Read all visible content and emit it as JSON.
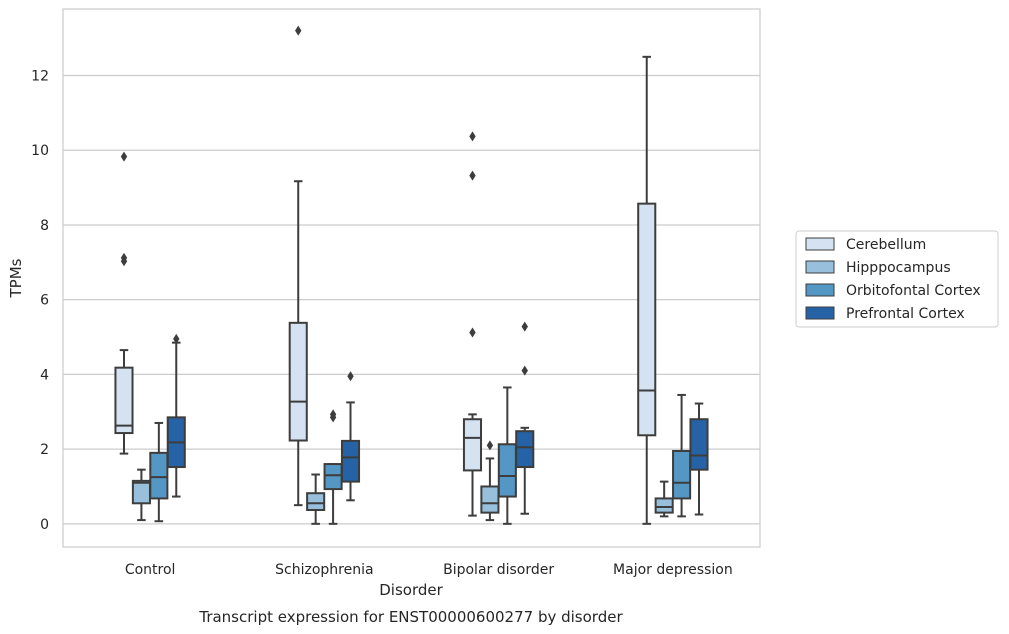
{
  "chart_data": {
    "type": "box",
    "title": "",
    "caption": "Transcript expression for ENST00000600277 by disorder",
    "xlabel": "Disorder",
    "ylabel": "TPMs",
    "ylim": [
      -0.62,
      13.78
    ],
    "yticks": [
      0,
      2,
      4,
      6,
      8,
      10,
      12
    ],
    "grid": "horizontal",
    "legend_position": "right",
    "categories": [
      "Control",
      "Schizophrenia",
      "Bipolar disorder",
      "Major depression"
    ],
    "series": [
      {
        "name": "Cerebellum",
        "color": "#d4e2f1",
        "boxes": [
          {
            "whislo": 1.88,
            "q1": 2.43,
            "med": 2.63,
            "q3": 4.18,
            "whishi": 4.65,
            "fliers": [
              9.83,
              7.12,
              7.03
            ]
          },
          {
            "whislo": 0.5,
            "q1": 2.23,
            "med": 3.27,
            "q3": 5.38,
            "whishi": 9.17,
            "fliers": [
              13.2
            ]
          },
          {
            "whislo": 0.22,
            "q1": 1.43,
            "med": 2.3,
            "q3": 2.8,
            "whishi": 2.93,
            "fliers": [
              10.37,
              9.32,
              5.12
            ]
          },
          {
            "whislo": 0.0,
            "q1": 2.37,
            "med": 3.57,
            "q3": 8.57,
            "whishi": 12.5,
            "fliers": []
          }
        ]
      },
      {
        "name": "Hipppocampus",
        "color": "#98c0dc",
        "boxes": [
          {
            "whislo": 0.1,
            "q1": 0.55,
            "med": 1.1,
            "q3": 1.15,
            "whishi": 1.45,
            "fliers": []
          },
          {
            "whislo": 0.0,
            "q1": 0.37,
            "med": 0.55,
            "q3": 0.82,
            "whishi": 1.32,
            "fliers": []
          },
          {
            "whislo": 0.1,
            "q1": 0.3,
            "med": 0.55,
            "q3": 1.0,
            "whishi": 1.75,
            "fliers": [
              2.1
            ]
          },
          {
            "whislo": 0.2,
            "q1": 0.3,
            "med": 0.45,
            "q3": 0.68,
            "whishi": 1.13,
            "fliers": []
          }
        ]
      },
      {
        "name": "Orbitofontal Cortex",
        "color": "#5496c4",
        "boxes": [
          {
            "whislo": 0.07,
            "q1": 0.68,
            "med": 1.25,
            "q3": 1.9,
            "whishi": 2.7,
            "fliers": []
          },
          {
            "whislo": 0.0,
            "q1": 0.93,
            "med": 1.3,
            "q3": 1.6,
            "whishi": 1.6,
            "fliers": [
              2.93,
              2.85
            ]
          },
          {
            "whislo": 0.0,
            "q1": 0.73,
            "med": 1.28,
            "q3": 2.13,
            "whishi": 3.65,
            "fliers": []
          },
          {
            "whislo": 0.2,
            "q1": 0.68,
            "med": 1.1,
            "q3": 1.95,
            "whishi": 3.45,
            "fliers": []
          }
        ]
      },
      {
        "name": "Prefrontal Cortex",
        "color": "#2563a6",
        "boxes": [
          {
            "whislo": 0.73,
            "q1": 1.52,
            "med": 2.18,
            "q3": 2.85,
            "whishi": 4.85,
            "fliers": [
              4.95
            ]
          },
          {
            "whislo": 0.63,
            "q1": 1.13,
            "med": 1.78,
            "q3": 2.22,
            "whishi": 3.25,
            "fliers": [
              3.95
            ]
          },
          {
            "whislo": 0.27,
            "q1": 1.52,
            "med": 2.05,
            "q3": 2.48,
            "whishi": 2.57,
            "fliers": [
              5.28,
              4.1
            ]
          },
          {
            "whislo": 0.25,
            "q1": 1.45,
            "med": 1.83,
            "q3": 2.8,
            "whishi": 3.22,
            "fliers": []
          }
        ]
      }
    ]
  }
}
